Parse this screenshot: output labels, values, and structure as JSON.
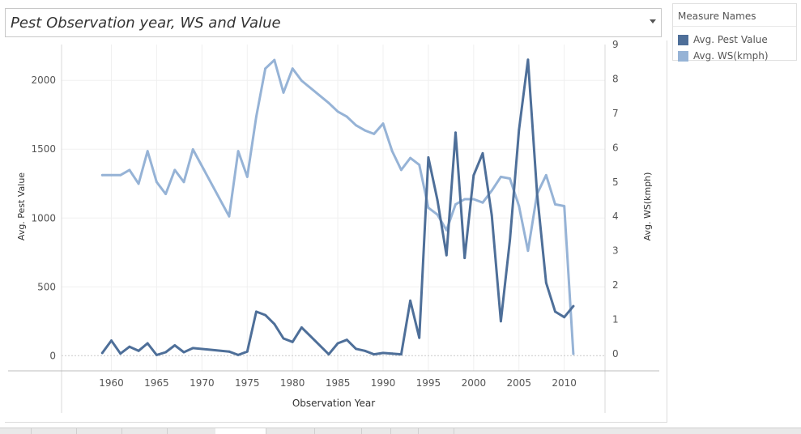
{
  "worksheet": {
    "title": "Pest Observation year, WS and Value"
  },
  "legend": {
    "title": "Measure Names",
    "items": [
      {
        "label": "Avg. Pest Value",
        "color": "#4e6f99"
      },
      {
        "label": "Avg. WS(kmph)",
        "color": "#96b3d6"
      }
    ]
  },
  "chart_data": {
    "type": "line",
    "title": "Pest Observation year, WS and Value",
    "xlabel": "Observation Year",
    "ylabel": "Avg. Pest Value",
    "y2label": "Avg. WS(kmph)",
    "xlim": [
      1954.5,
      2014.5
    ],
    "ylim": [
      -110,
      2260
    ],
    "y2lim": [
      -0.495,
      9.0
    ],
    "x_ticks": [
      1960,
      1965,
      1970,
      1975,
      1980,
      1985,
      1990,
      1995,
      2000,
      2005,
      2010
    ],
    "y_ticks": [
      0,
      500,
      1000,
      1500,
      2000
    ],
    "y2_ticks": [
      0,
      1,
      2,
      3,
      4,
      5,
      6,
      7,
      8,
      9
    ],
    "grid": true,
    "legend_position": "right",
    "series": [
      {
        "name": "Avg. Pest Value",
        "axis": "left",
        "color": "#4e6f99",
        "x": [
          1959,
          1960,
          1961,
          1962,
          1963,
          1964,
          1965,
          1966,
          1967,
          1968,
          1969,
          1973,
          1974,
          1975,
          1976,
          1977,
          1978,
          1979,
          1980,
          1981,
          1984,
          1985,
          1986,
          1987,
          1988,
          1989,
          1990,
          1991,
          1992,
          1993,
          1994,
          1995,
          1996,
          1997,
          1998,
          1999,
          2000,
          2001,
          2002,
          2003,
          2004,
          2005,
          2006,
          2007,
          2008,
          2009,
          2010,
          2011
        ],
        "values": [
          20,
          110,
          15,
          65,
          35,
          90,
          5,
          25,
          75,
          25,
          55,
          30,
          5,
          30,
          320,
          295,
          230,
          125,
          100,
          205,
          10,
          90,
          115,
          50,
          35,
          10,
          20,
          15,
          10,
          400,
          130,
          1440,
          1130,
          730,
          1620,
          710,
          1310,
          1470,
          1020,
          250,
          840,
          1640,
          2150,
          1180,
          530,
          320,
          280,
          360
        ]
      },
      {
        "name": "Avg. WS(kmph)",
        "axis": "right",
        "color": "#96b3d6",
        "x": [
          1959,
          1960,
          1961,
          1962,
          1963,
          1964,
          1965,
          1966,
          1967,
          1968,
          1969,
          1973,
          1974,
          1975,
          1976,
          1977,
          1978,
          1979,
          1980,
          1981,
          1984,
          1985,
          1986,
          1987,
          1988,
          1989,
          1990,
          1991,
          1992,
          1993,
          1994,
          1995,
          1996,
          1997,
          1998,
          1999,
          2000,
          2001,
          2002,
          2003,
          2004,
          2005,
          2006,
          2007,
          2008,
          2009,
          2010,
          2011
        ],
        "values": [
          5.2,
          5.2,
          5.2,
          5.35,
          4.95,
          5.9,
          5.0,
          4.65,
          5.35,
          5.0,
          5.95,
          4.0,
          5.9,
          5.15,
          6.9,
          8.3,
          8.55,
          7.6,
          8.3,
          7.95,
          7.3,
          7.05,
          6.9,
          6.65,
          6.5,
          6.4,
          6.7,
          5.9,
          5.35,
          5.7,
          5.5,
          4.25,
          4.05,
          3.6,
          4.35,
          4.5,
          4.5,
          4.4,
          4.75,
          5.15,
          5.1,
          4.3,
          3.0,
          4.65,
          5.2,
          4.35,
          4.3,
          0.0
        ]
      }
    ]
  }
}
